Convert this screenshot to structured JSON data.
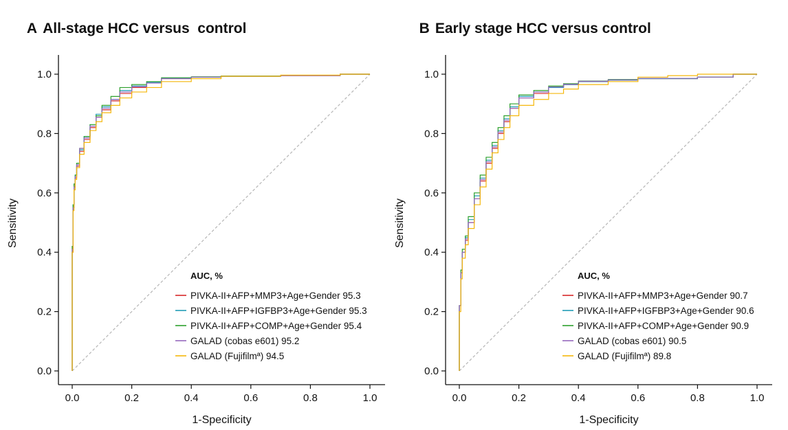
{
  "chart_data": [
    {
      "type": "line",
      "panel": "A",
      "title": "All-stage HCC versus  control",
      "xlabel": "1-Specificity",
      "ylabel": "Sensitivity",
      "xlim": [
        0,
        1
      ],
      "ylim": [
        0,
        1
      ],
      "xticks": [
        "0.0",
        "0.2",
        "0.4",
        "0.6",
        "0.8",
        "1.0"
      ],
      "yticks": [
        "0.0",
        "0.2",
        "0.4",
        "0.6",
        "0.8",
        "1.0"
      ],
      "grid": false,
      "reference_line": "diagonal",
      "legend_title": "AUC, %",
      "legend_position": "bottom-right",
      "series": [
        {
          "name": "PIVKA-II+AFP+MMP3+Age+Gender 95.3",
          "color": "#d62728",
          "points": [
            [
              0,
              0
            ],
            [
              0.003,
              0.4
            ],
            [
              0.006,
              0.55
            ],
            [
              0.01,
              0.62
            ],
            [
              0.015,
              0.65
            ],
            [
              0.025,
              0.69
            ],
            [
              0.04,
              0.74
            ],
            [
              0.06,
              0.78
            ],
            [
              0.08,
              0.82
            ],
            [
              0.1,
              0.855
            ],
            [
              0.13,
              0.88
            ],
            [
              0.16,
              0.91
            ],
            [
              0.2,
              0.935
            ],
            [
              0.25,
              0.955
            ],
            [
              0.3,
              0.97
            ],
            [
              0.4,
              0.985
            ],
            [
              0.5,
              0.99
            ],
            [
              0.7,
              0.993
            ],
            [
              0.9,
              0.995
            ],
            [
              1,
              1
            ]
          ]
        },
        {
          "name": "PIVKA-II+AFP+IGFBP3+Age+Gender 95.3",
          "color": "#1f9bb5",
          "points": [
            [
              0,
              0
            ],
            [
              0.003,
              0.42
            ],
            [
              0.006,
              0.56
            ],
            [
              0.01,
              0.63
            ],
            [
              0.015,
              0.66
            ],
            [
              0.025,
              0.7
            ],
            [
              0.04,
              0.745
            ],
            [
              0.06,
              0.79
            ],
            [
              0.08,
              0.83
            ],
            [
              0.1,
              0.865
            ],
            [
              0.13,
              0.89
            ],
            [
              0.16,
              0.915
            ],
            [
              0.2,
              0.945
            ],
            [
              0.25,
              0.96
            ],
            [
              0.3,
              0.972
            ],
            [
              0.4,
              0.986
            ],
            [
              0.5,
              0.99
            ],
            [
              0.7,
              0.993
            ],
            [
              0.9,
              0.996
            ],
            [
              1,
              1
            ]
          ]
        },
        {
          "name": "PIVKA-II+AFP+COMP+Age+Gender 95.4",
          "color": "#2ca02c",
          "points": [
            [
              0,
              0
            ],
            [
              0.003,
              0.42
            ],
            [
              0.006,
              0.56
            ],
            [
              0.01,
              0.63
            ],
            [
              0.015,
              0.66
            ],
            [
              0.025,
              0.7
            ],
            [
              0.04,
              0.75
            ],
            [
              0.06,
              0.79
            ],
            [
              0.08,
              0.83
            ],
            [
              0.1,
              0.86
            ],
            [
              0.13,
              0.895
            ],
            [
              0.16,
              0.925
            ],
            [
              0.2,
              0.955
            ],
            [
              0.25,
              0.965
            ],
            [
              0.3,
              0.975
            ],
            [
              0.4,
              0.988
            ],
            [
              0.5,
              0.991
            ],
            [
              0.7,
              0.994
            ],
            [
              0.9,
              0.996
            ],
            [
              1,
              1
            ]
          ]
        },
        {
          "name": "GALAD (cobas e601) 95.2",
          "color": "#9467bd",
          "points": [
            [
              0,
              0
            ],
            [
              0.003,
              0.41
            ],
            [
              0.006,
              0.55
            ],
            [
              0.01,
              0.62
            ],
            [
              0.015,
              0.655
            ],
            [
              0.025,
              0.695
            ],
            [
              0.04,
              0.75
            ],
            [
              0.06,
              0.785
            ],
            [
              0.08,
              0.825
            ],
            [
              0.1,
              0.855
            ],
            [
              0.13,
              0.885
            ],
            [
              0.16,
              0.915
            ],
            [
              0.2,
              0.94
            ],
            [
              0.25,
              0.958
            ],
            [
              0.3,
              0.97
            ],
            [
              0.4,
              0.985
            ],
            [
              0.5,
              0.99
            ],
            [
              0.7,
              0.993
            ],
            [
              0.9,
              0.996
            ],
            [
              1,
              1
            ]
          ]
        },
        {
          "name": "GALAD (Fujifilmª) 94.5",
          "color": "#f5b70a",
          "points": [
            [
              0,
              0
            ],
            [
              0.003,
              0.4
            ],
            [
              0.006,
              0.54
            ],
            [
              0.01,
              0.61
            ],
            [
              0.015,
              0.645
            ],
            [
              0.025,
              0.685
            ],
            [
              0.04,
              0.73
            ],
            [
              0.06,
              0.77
            ],
            [
              0.08,
              0.81
            ],
            [
              0.1,
              0.84
            ],
            [
              0.13,
              0.87
            ],
            [
              0.16,
              0.895
            ],
            [
              0.2,
              0.92
            ],
            [
              0.25,
              0.94
            ],
            [
              0.3,
              0.955
            ],
            [
              0.4,
              0.975
            ],
            [
              0.5,
              0.985
            ],
            [
              0.7,
              0.993
            ],
            [
              0.9,
              0.997
            ],
            [
              1,
              1
            ]
          ]
        }
      ]
    },
    {
      "type": "line",
      "panel": "B",
      "title": "Early stage HCC versus control",
      "xlabel": "1-Specificity",
      "ylabel": "Sensitivity",
      "xlim": [
        0,
        1
      ],
      "ylim": [
        0,
        1
      ],
      "xticks": [
        "0.0",
        "0.2",
        "0.4",
        "0.6",
        "0.8",
        "1.0"
      ],
      "yticks": [
        "0.0",
        "0.2",
        "0.4",
        "0.6",
        "0.8",
        "1.0"
      ],
      "grid": false,
      "reference_line": "diagonal",
      "legend_title": "AUC, %",
      "legend_position": "bottom-right",
      "series": [
        {
          "name": "PIVKA-II+AFP+MMP3+Age+Gender 90.7",
          "color": "#d62728",
          "points": [
            [
              0,
              0
            ],
            [
              0.005,
              0.22
            ],
            [
              0.01,
              0.33
            ],
            [
              0.02,
              0.4
            ],
            [
              0.03,
              0.44
            ],
            [
              0.05,
              0.5
            ],
            [
              0.07,
              0.58
            ],
            [
              0.09,
              0.64
            ],
            [
              0.11,
              0.7
            ],
            [
              0.13,
              0.75
            ],
            [
              0.15,
              0.8
            ],
            [
              0.17,
              0.84
            ],
            [
              0.2,
              0.885
            ],
            [
              0.25,
              0.92
            ],
            [
              0.3,
              0.935
            ],
            [
              0.35,
              0.955
            ],
            [
              0.4,
              0.965
            ],
            [
              0.5,
              0.975
            ],
            [
              0.6,
              0.98
            ],
            [
              0.8,
              0.985
            ],
            [
              0.92,
              0.99
            ],
            [
              1,
              1
            ]
          ]
        },
        {
          "name": "PIVKA-II+AFP+IGFBP3+Age+Gender 90.6",
          "color": "#1f9bb5",
          "points": [
            [
              0,
              0
            ],
            [
              0.005,
              0.22
            ],
            [
              0.01,
              0.33
            ],
            [
              0.02,
              0.4
            ],
            [
              0.03,
              0.45
            ],
            [
              0.05,
              0.51
            ],
            [
              0.07,
              0.59
            ],
            [
              0.09,
              0.65
            ],
            [
              0.11,
              0.71
            ],
            [
              0.13,
              0.76
            ],
            [
              0.15,
              0.81
            ],
            [
              0.17,
              0.85
            ],
            [
              0.2,
              0.89
            ],
            [
              0.25,
              0.925
            ],
            [
              0.3,
              0.94
            ],
            [
              0.35,
              0.955
            ],
            [
              0.4,
              0.965
            ],
            [
              0.5,
              0.975
            ],
            [
              0.6,
              0.98
            ],
            [
              0.8,
              0.985
            ],
            [
              0.92,
              0.99
            ],
            [
              1,
              1
            ]
          ]
        },
        {
          "name": "PIVKA-II+AFP+COMP+Age+Gender 90.9",
          "color": "#2ca02c",
          "points": [
            [
              0,
              0
            ],
            [
              0.005,
              0.22
            ],
            [
              0.01,
              0.34
            ],
            [
              0.02,
              0.41
            ],
            [
              0.03,
              0.455
            ],
            [
              0.05,
              0.52
            ],
            [
              0.07,
              0.6
            ],
            [
              0.09,
              0.66
            ],
            [
              0.11,
              0.72
            ],
            [
              0.13,
              0.77
            ],
            [
              0.15,
              0.82
            ],
            [
              0.17,
              0.86
            ],
            [
              0.2,
              0.9
            ],
            [
              0.25,
              0.93
            ],
            [
              0.3,
              0.945
            ],
            [
              0.35,
              0.96
            ],
            [
              0.4,
              0.968
            ],
            [
              0.5,
              0.977
            ],
            [
              0.6,
              0.982
            ],
            [
              0.8,
              0.986
            ],
            [
              0.92,
              0.99
            ],
            [
              1,
              1
            ]
          ]
        },
        {
          "name": "GALAD (cobas e601) 90.5",
          "color": "#9467bd",
          "points": [
            [
              0,
              0
            ],
            [
              0.005,
              0.22
            ],
            [
              0.01,
              0.33
            ],
            [
              0.02,
              0.4
            ],
            [
              0.03,
              0.445
            ],
            [
              0.05,
              0.5
            ],
            [
              0.07,
              0.58
            ],
            [
              0.09,
              0.645
            ],
            [
              0.11,
              0.705
            ],
            [
              0.13,
              0.755
            ],
            [
              0.15,
              0.805
            ],
            [
              0.17,
              0.845
            ],
            [
              0.2,
              0.885
            ],
            [
              0.25,
              0.92
            ],
            [
              0.3,
              0.94
            ],
            [
              0.35,
              0.957
            ],
            [
              0.4,
              0.966
            ],
            [
              0.5,
              0.976
            ],
            [
              0.6,
              0.981
            ],
            [
              0.8,
              0.986
            ],
            [
              0.92,
              0.99
            ],
            [
              1,
              1
            ]
          ]
        },
        {
          "name": "GALAD (Fujifilmª) 89.8",
          "color": "#f5b70a",
          "points": [
            [
              0,
              0
            ],
            [
              0.005,
              0.2
            ],
            [
              0.01,
              0.31
            ],
            [
              0.02,
              0.38
            ],
            [
              0.03,
              0.425
            ],
            [
              0.05,
              0.48
            ],
            [
              0.07,
              0.56
            ],
            [
              0.09,
              0.62
            ],
            [
              0.11,
              0.68
            ],
            [
              0.13,
              0.735
            ],
            [
              0.15,
              0.78
            ],
            [
              0.17,
              0.82
            ],
            [
              0.2,
              0.86
            ],
            [
              0.25,
              0.895
            ],
            [
              0.3,
              0.915
            ],
            [
              0.35,
              0.935
            ],
            [
              0.4,
              0.95
            ],
            [
              0.5,
              0.965
            ],
            [
              0.6,
              0.975
            ],
            [
              0.7,
              0.99
            ],
            [
              0.8,
              0.995
            ],
            [
              1,
              1
            ]
          ]
        }
      ]
    }
  ]
}
